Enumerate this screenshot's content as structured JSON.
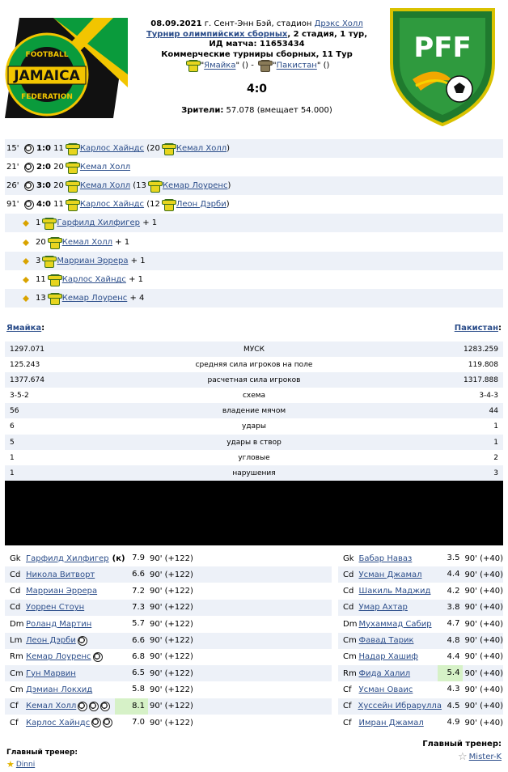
{
  "header": {
    "date": "08.09.2021",
    "venue_prefix": "г. Сент-Энн Бэй, стадион",
    "venue_link": "Дрэкс Холл",
    "tournament_link": "Турнир олимпийских сборных",
    "stage": ", 2 стадия, 1 тур,",
    "match_id": "ИД матча: 11653434",
    "commercial": "Коммерческие турниры сборных, 11 Тур",
    "home_team": "Ямайка",
    "away_team": "Пакистан",
    "home_paren": "\" ()",
    "away_paren": "\" ()",
    "dash": " - ",
    "score": "4:0",
    "attendance_label": "Зрители:",
    "attendance_value": "57.078 (вмещает 54.000)",
    "left_logo_text_top": "FOOTBALL",
    "left_logo_text_mid": "JAMAICA",
    "left_logo_text_bot": "FEDERATION",
    "right_logo_text": "PFF"
  },
  "events": [
    {
      "minute": "15'",
      "score": "1:0",
      "num": "11",
      "player": "Карлос Хайндс",
      "assist_prefix": "(20",
      "assist": "Кемал Холл",
      "assist_suffix": ")"
    },
    {
      "minute": "21'",
      "score": "2:0",
      "num": "20",
      "player": "Кемал Холл"
    },
    {
      "minute": "26'",
      "score": "3:0",
      "num": "20",
      "player": "Кемал Холл",
      "assist_prefix": "(13",
      "assist": "Кемар Лоуренс",
      "assist_suffix": ")"
    },
    {
      "minute": "91'",
      "score": "4:0",
      "num": "11",
      "player": "Карлос Хайндс",
      "assist_prefix": "(12",
      "assist": "Леон Дэрби",
      "assist_suffix": ")"
    }
  ],
  "bonuses": [
    {
      "num": "1",
      "player": "Гарфилд Хилфигер",
      "bonus": "+ 1"
    },
    {
      "num": "20",
      "player": "Кемал Холл",
      "bonus": "+ 1"
    },
    {
      "num": "3",
      "player": "Марриан Эррера",
      "bonus": "+ 1"
    },
    {
      "num": "11",
      "player": "Карлос Хайндс",
      "bonus": "+ 1"
    },
    {
      "num": "13",
      "player": "Кемар Лоуренс",
      "bonus": "+ 4"
    }
  ],
  "stats_header": {
    "left": "Ямайка",
    "right": "Пакистан",
    "colon": ":"
  },
  "stats": [
    {
      "left": "1297.071",
      "label": "МУСК",
      "right": "1283.259"
    },
    {
      "left": "125.243",
      "label": "средняя сила игроков на поле",
      "right": "119.808"
    },
    {
      "left": "1377.674",
      "label": "расчетная сила игроков",
      "right": "1317.888"
    },
    {
      "left": "3-5-2",
      "label": "схема",
      "right": "3-4-3"
    },
    {
      "left": "56",
      "label": "владение мячом",
      "right": "44"
    },
    {
      "left": "6",
      "label": "удары",
      "right": "1"
    },
    {
      "left": "5",
      "label": "удары в створ",
      "right": "1"
    },
    {
      "left": "1",
      "label": "угловые",
      "right": "2"
    },
    {
      "left": "1",
      "label": "нарушения",
      "right": "3"
    }
  ],
  "home_lineup": [
    {
      "pos": "Gk",
      "name": "Гарфилд Хилфигер",
      "captain": "(к)",
      "balls": 0,
      "rating": "7.9",
      "time": "90' (+122)"
    },
    {
      "pos": "Cd",
      "name": "Никола Витворт",
      "balls": 0,
      "rating": "6.6",
      "time": "90' (+122)"
    },
    {
      "pos": "Cd",
      "name": "Марриан Эррера",
      "balls": 0,
      "rating": "7.2",
      "time": "90' (+122)"
    },
    {
      "pos": "Cd",
      "name": "Уоррен Стоун",
      "balls": 0,
      "rating": "7.3",
      "time": "90' (+122)"
    },
    {
      "pos": "Dm",
      "name": "Роланд Мартин",
      "balls": 0,
      "rating": "5.7",
      "time": "90' (+122)"
    },
    {
      "pos": "Lm",
      "name": "Леон Дэрби",
      "balls": 1,
      "rating": "6.6",
      "time": "90' (+122)"
    },
    {
      "pos": "Rm",
      "name": "Кемар Лоуренс",
      "balls": 1,
      "rating": "6.8",
      "time": "90' (+122)"
    },
    {
      "pos": "Cm",
      "name": "Гун Марвин",
      "balls": 0,
      "rating": "6.5",
      "time": "90' (+122)"
    },
    {
      "pos": "Cm",
      "name": "Дэмиан Локхид",
      "balls": 0,
      "rating": "5.8",
      "time": "90' (+122)"
    },
    {
      "pos": "Cf",
      "name": "Кемал Холл",
      "balls": 3,
      "rating": "8.1",
      "best": true,
      "time": "90' (+122)"
    },
    {
      "pos": "Cf",
      "name": "Карлос Хайндс",
      "balls": 2,
      "rating": "7.0",
      "time": "90' (+122)"
    }
  ],
  "away_lineup": [
    {
      "pos": "Gk",
      "name": "Бабар Наваз",
      "rating": "3.5",
      "time": "90' (+40)"
    },
    {
      "pos": "Cd",
      "name": "Усман Джамал",
      "rating": "4.4",
      "time": "90' (+40)"
    },
    {
      "pos": "Cd",
      "name": "Шакиль Маджид",
      "rating": "4.2",
      "time": "90' (+40)"
    },
    {
      "pos": "Cd",
      "name": "Умар Ахтар",
      "rating": "3.8",
      "time": "90' (+40)"
    },
    {
      "pos": "Dm",
      "name": "Мухаммад Сабир",
      "rating": "4.7",
      "time": "90' (+40)"
    },
    {
      "pos": "Cm",
      "name": "Фавад Тарик",
      "rating": "4.8",
      "time": "90' (+40)"
    },
    {
      "pos": "Cm",
      "name": "Надар Хашиф",
      "rating": "4.4",
      "time": "90' (+40)"
    },
    {
      "pos": "Rm",
      "name": "Фида Халил",
      "rating": "5.4",
      "best": true,
      "time": "90' (+40)"
    },
    {
      "pos": "Cf",
      "name": "Усман Оваис",
      "rating": "4.3",
      "time": "90' (+40)"
    },
    {
      "pos": "Cf",
      "name": "Хуссейн Ибрарулла",
      "rating": "4.5",
      "time": "90' (+40)"
    },
    {
      "pos": "Cf",
      "name": "Имран Джамал",
      "rating": "4.9",
      "time": "90' (+40)"
    }
  ],
  "coaches": {
    "label": "Главный тренер:",
    "home": "Dinni",
    "away": "Mister-K"
  },
  "colors": {
    "row_shade": "#edf1f8",
    "link": "#2b4d8a",
    "best_rating": "#d6f1c7",
    "jamaica_green": "#0a9b3c",
    "jamaica_yellow": "#f2c500"
  }
}
